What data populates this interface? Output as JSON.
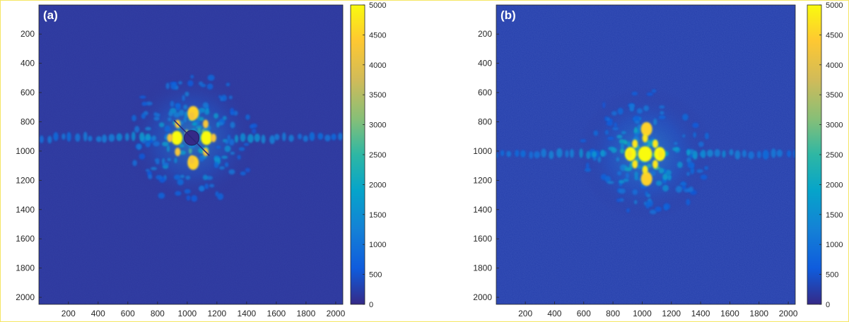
{
  "chart_data": [
    {
      "type": "heatmap",
      "panel_label": "(a)",
      "title": "",
      "xlabel": "",
      "ylabel": "",
      "xlim": [
        1,
        2048
      ],
      "ylim": [
        2048,
        1
      ],
      "y_reversed": true,
      "x_ticks": [
        200,
        400,
        600,
        800,
        1000,
        1200,
        1400,
        1600,
        1800,
        2000
      ],
      "y_ticks": [
        200,
        400,
        600,
        800,
        1000,
        1200,
        1400,
        1600,
        1800,
        2000
      ],
      "colorbar": {
        "min": 0,
        "max": 5000,
        "ticks": [
          0,
          500,
          1000,
          1500,
          2000,
          2500,
          3000,
          3500,
          4000,
          4500,
          5000
        ],
        "colormap": "parula"
      },
      "background_value": 150,
      "center": [
        1030,
        910
      ],
      "beamstop": {
        "center": [
          1030,
          910
        ],
        "radius": 50
      },
      "features": [
        {
          "x": 1030,
          "y": 910,
          "value": 5000,
          "description": "saturated central speckles around beamstop"
        },
        {
          "x": 1130,
          "y": 910,
          "value": 5000
        },
        {
          "x": 930,
          "y": 910,
          "value": 5000
        },
        {
          "x": 1040,
          "y": 740,
          "value": 4500
        },
        {
          "x": 1040,
          "y": 1080,
          "value": 4500
        }
      ],
      "grid": false,
      "legend": "colorbar-right"
    },
    {
      "type": "heatmap",
      "panel_label": "(b)",
      "title": "",
      "xlabel": "",
      "ylabel": "",
      "xlim": [
        1,
        2048
      ],
      "ylim": [
        2048,
        1
      ],
      "y_reversed": true,
      "x_ticks": [
        200,
        400,
        600,
        800,
        1000,
        1200,
        1400,
        1600,
        1800,
        2000
      ],
      "y_ticks": [
        200,
        400,
        600,
        800,
        1000,
        1200,
        1400,
        1600,
        1800,
        2000
      ],
      "colorbar": {
        "min": 0,
        "max": 5000,
        "ticks": [
          0,
          500,
          1000,
          1500,
          2000,
          2500,
          3000,
          3500,
          4000,
          4500,
          5000
        ],
        "colormap": "parula"
      },
      "background_value": 250,
      "center": [
        1020,
        1020
      ],
      "beamstop": null,
      "features": [
        {
          "x": 1020,
          "y": 1020,
          "value": 5000,
          "description": "saturated central speckles"
        },
        {
          "x": 1120,
          "y": 1020,
          "value": 5000
        },
        {
          "x": 920,
          "y": 1020,
          "value": 5000
        },
        {
          "x": 1030,
          "y": 850,
          "value": 4500
        },
        {
          "x": 1030,
          "y": 1190,
          "value": 4500
        }
      ],
      "grid": false,
      "legend": "colorbar-right"
    }
  ]
}
